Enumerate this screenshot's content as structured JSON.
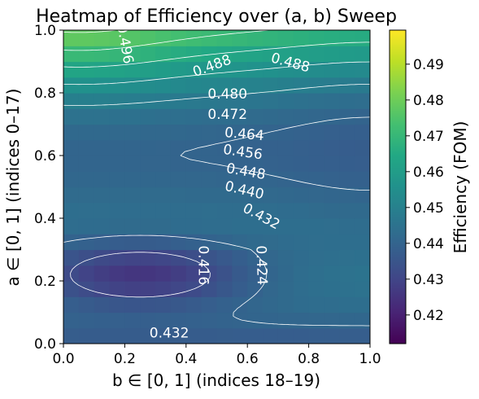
{
  "chart_data": {
    "type": "heatmap",
    "title": "Heatmap of Efficiency over (a, b) Sweep",
    "xlabel": "b ∈ [0, 1] (indices 18–19)",
    "ylabel": "a ∈ [0, 1] (indices 0–17)",
    "colorbar_label": "Efficiency (FOM)",
    "colormap": "viridis",
    "xlim": [
      0,
      1
    ],
    "ylim": [
      0,
      1
    ],
    "zlim": [
      0.412,
      0.4995
    ],
    "x_ticks": [
      "0.0",
      "0.2",
      "0.4",
      "0.6",
      "0.8",
      "1.0"
    ],
    "y_ticks": [
      "0.0",
      "0.2",
      "0.4",
      "0.6",
      "0.8",
      "1.0"
    ],
    "colorbar_ticks": [
      "0.42",
      "0.43",
      "0.44",
      "0.45",
      "0.46",
      "0.47",
      "0.48",
      "0.49"
    ],
    "colorbar_tick_values": [
      0.42,
      0.43,
      0.44,
      0.45,
      0.46,
      0.47,
      0.48,
      0.49
    ],
    "grid": false,
    "contour_levels": [
      0.416,
      0.424,
      0.432,
      0.44,
      0.448,
      0.456,
      0.464,
      0.472,
      0.48,
      0.488,
      0.496
    ],
    "contour_labels": [
      {
        "text": "0.496",
        "x": 0.2,
        "y": 0.955,
        "rotation": 80
      },
      {
        "text": "0.488",
        "x": 0.485,
        "y": 0.885,
        "rotation": -20
      },
      {
        "text": "0.488",
        "x": 0.74,
        "y": 0.895,
        "rotation": 15
      },
      {
        "text": "0.480",
        "x": 0.535,
        "y": 0.795,
        "rotation": 0
      },
      {
        "text": "0.472",
        "x": 0.535,
        "y": 0.73,
        "rotation": 0
      },
      {
        "text": "0.464",
        "x": 0.59,
        "y": 0.667,
        "rotation": 5
      },
      {
        "text": "0.456",
        "x": 0.585,
        "y": 0.61,
        "rotation": 8
      },
      {
        "text": "0.448",
        "x": 0.595,
        "y": 0.548,
        "rotation": 10
      },
      {
        "text": "0.440",
        "x": 0.59,
        "y": 0.488,
        "rotation": 13
      },
      {
        "text": "0.432",
        "x": 0.645,
        "y": 0.405,
        "rotation": 28
      },
      {
        "text": "0.416",
        "x": 0.455,
        "y": 0.25,
        "rotation": 90
      },
      {
        "text": "0.424",
        "x": 0.645,
        "y": 0.25,
        "rotation": 88
      },
      {
        "text": "0.432",
        "x": 0.345,
        "y": 0.033,
        "rotation": 0
      }
    ]
  }
}
